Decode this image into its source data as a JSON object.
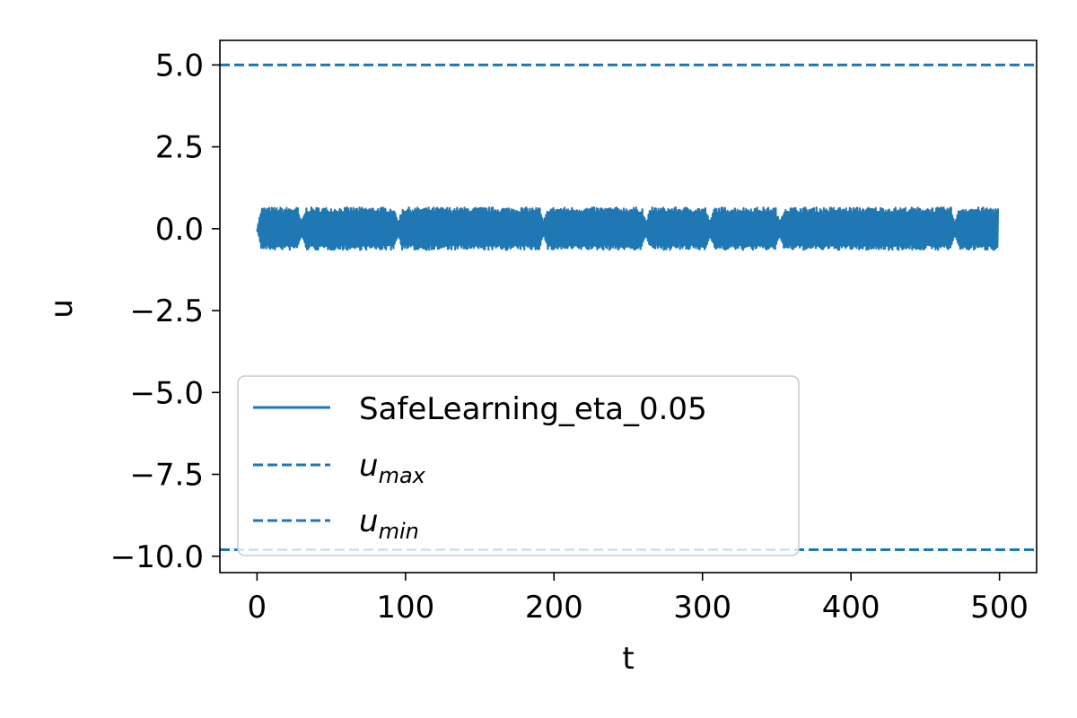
{
  "chart_data": {
    "type": "line",
    "xlabel": "t",
    "ylabel": "u",
    "xlim": [
      -25,
      525
    ],
    "ylim": [
      -10.5,
      5.75
    ],
    "xticks": [
      0,
      100,
      200,
      300,
      400,
      500
    ],
    "xtick_labels": [
      "0",
      "100",
      "200",
      "300",
      "400",
      "500"
    ],
    "yticks": [
      5.0,
      2.5,
      0.0,
      -2.5,
      -5.0,
      -7.5,
      -10.0
    ],
    "ytick_labels": [
      "5.0",
      "2.5",
      "0.0",
      "−2.5",
      "−5.0",
      "−7.5",
      "−10.0"
    ],
    "grid": false,
    "legend_position": "lower-left",
    "color": "#1f77b4",
    "series": [
      {
        "name": "SafeLearning_eta_0.05",
        "style": "solid",
        "x_range": [
          0,
          499
        ],
        "amplitude": 0.65,
        "description_values": "oscillating control signal between about -0.65 and 0.65, with brief gaps near t=30, 95, 193, 262, 305, 352, 470"
      },
      {
        "name": "u_max",
        "style": "dashed",
        "value": 5.0
      },
      {
        "name": "u_min",
        "style": "dashed",
        "value": -9.8
      }
    ],
    "legend": {
      "entries": [
        {
          "label": "SafeLearning_eta_0.05",
          "style": "solid"
        },
        {
          "label_base": "u",
          "label_sub": "max",
          "style": "dashed"
        },
        {
          "label_base": "u",
          "label_sub": "min",
          "style": "dashed"
        }
      ]
    }
  }
}
